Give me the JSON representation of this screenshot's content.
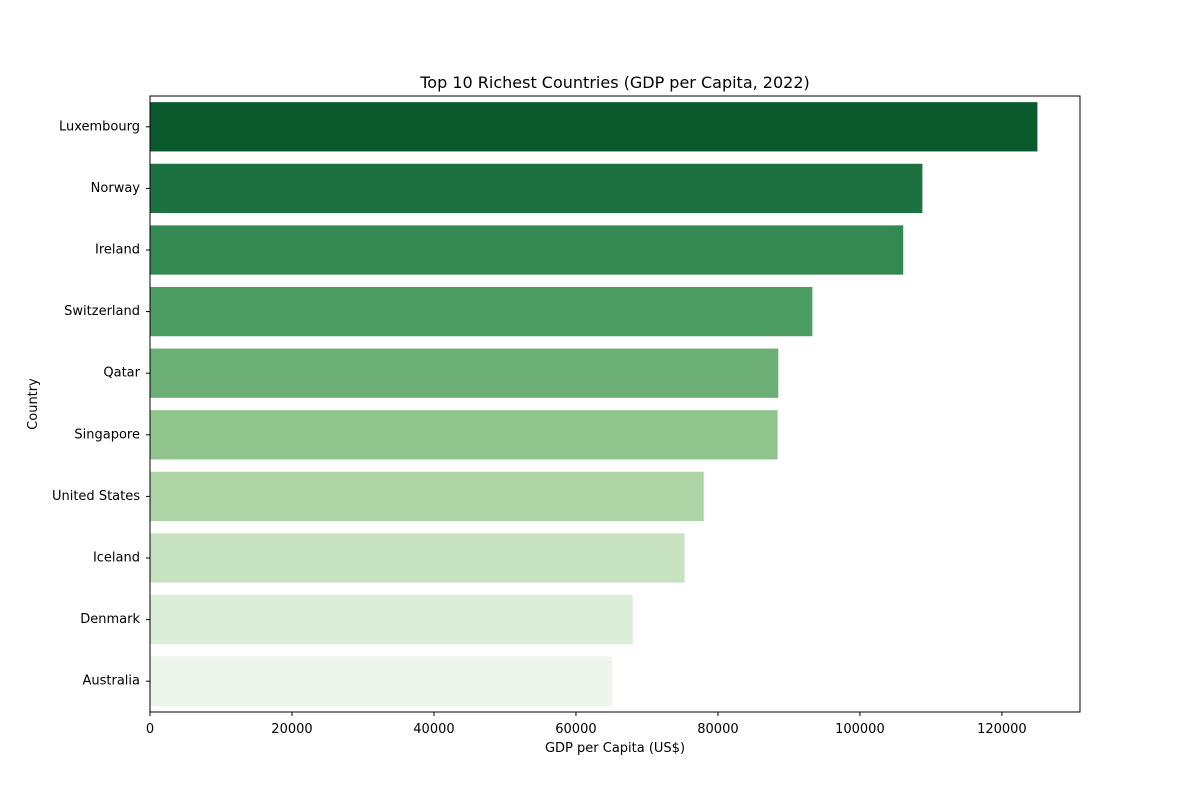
{
  "chart_data": {
    "type": "bar",
    "orientation": "horizontal",
    "title": "Top 10 Richest Countries (GDP per Capita, 2022)",
    "xlabel": "GDP per Capita (US$)",
    "ylabel": "Country",
    "xlim": [
      0,
      131000
    ],
    "x_ticks": [
      0,
      20000,
      40000,
      60000,
      80000,
      100000,
      120000
    ],
    "categories": [
      "Luxembourg",
      "Norway",
      "Ireland",
      "Switzerland",
      "Qatar",
      "Singapore",
      "United States",
      "Iceland",
      "Denmark",
      "Australia"
    ],
    "values": [
      125000,
      108800,
      106100,
      93300,
      88500,
      88400,
      78000,
      75300,
      68000,
      65100
    ],
    "colors": [
      "#0b5a2d",
      "#1d7140",
      "#348852",
      "#4c9d62",
      "#6caf75",
      "#8fc58c",
      "#acd4a5",
      "#c7e2c1",
      "#dbeed8",
      "#ebf5e9"
    ],
    "grid": false,
    "legend": "none"
  }
}
